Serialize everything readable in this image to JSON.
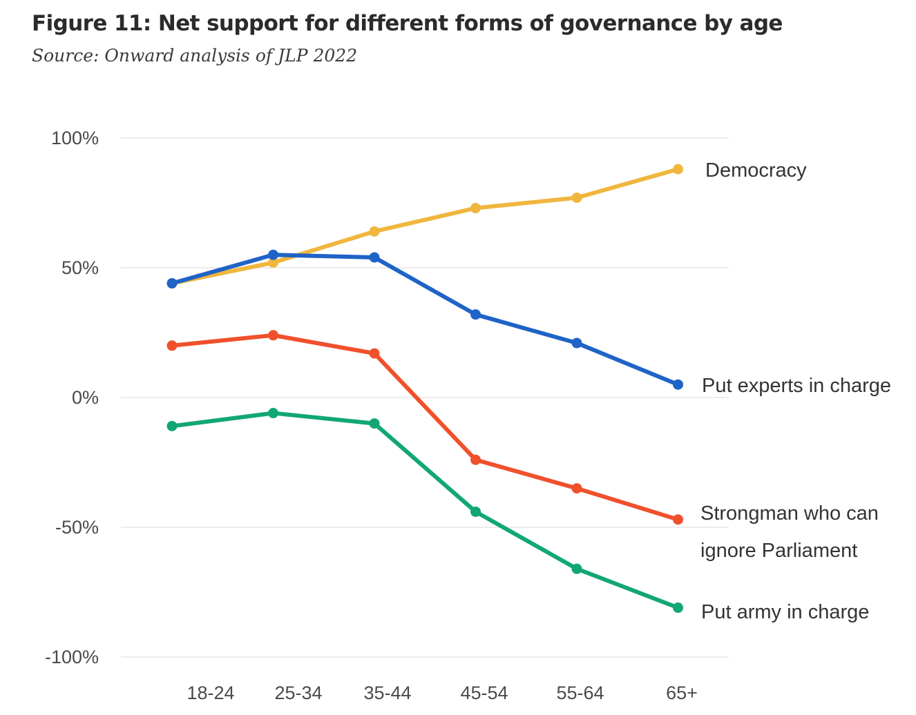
{
  "chart_data": {
    "type": "line",
    "title": "Figure 11: Net support for different forms of governance by age",
    "subtitle": "Source: Onward analysis of JLP 2022",
    "xlabel": "",
    "ylabel": "",
    "categories": [
      "18-24",
      "25-34",
      "35-44",
      "45-54",
      "55-64",
      "65+"
    ],
    "ylim": [
      -100,
      100
    ],
    "yticks": [
      {
        "value": 100,
        "label": "100%"
      },
      {
        "value": 50,
        "label": "50%"
      },
      {
        "value": 0,
        "label": "0%"
      },
      {
        "value": -50,
        "label": "-50%"
      },
      {
        "value": -100,
        "label": "-100%"
      }
    ],
    "grid": true,
    "series": [
      {
        "name": "Democracy",
        "label_lines": [
          "Democracy"
        ],
        "color": "#f0b63e",
        "values": [
          44,
          52,
          64,
          73,
          77,
          88
        ]
      },
      {
        "name": "Put experts in charge",
        "label_lines": [
          "Put experts in charge"
        ],
        "color": "#1f63c6",
        "values": [
          44,
          55,
          54,
          32,
          21,
          5
        ]
      },
      {
        "name": "Strongman who can ignore Parliament",
        "label_lines": [
          "Strongman who can",
          "ignore Parliament"
        ],
        "color": "#f0502c",
        "values": [
          20,
          24,
          17,
          -24,
          -35,
          -47
        ]
      },
      {
        "name": "Put army in charge",
        "label_lines": [
          "Put army in charge"
        ],
        "color": "#12a677",
        "values": [
          -11,
          -6,
          -10,
          -44,
          -66,
          -81
        ]
      }
    ]
  }
}
